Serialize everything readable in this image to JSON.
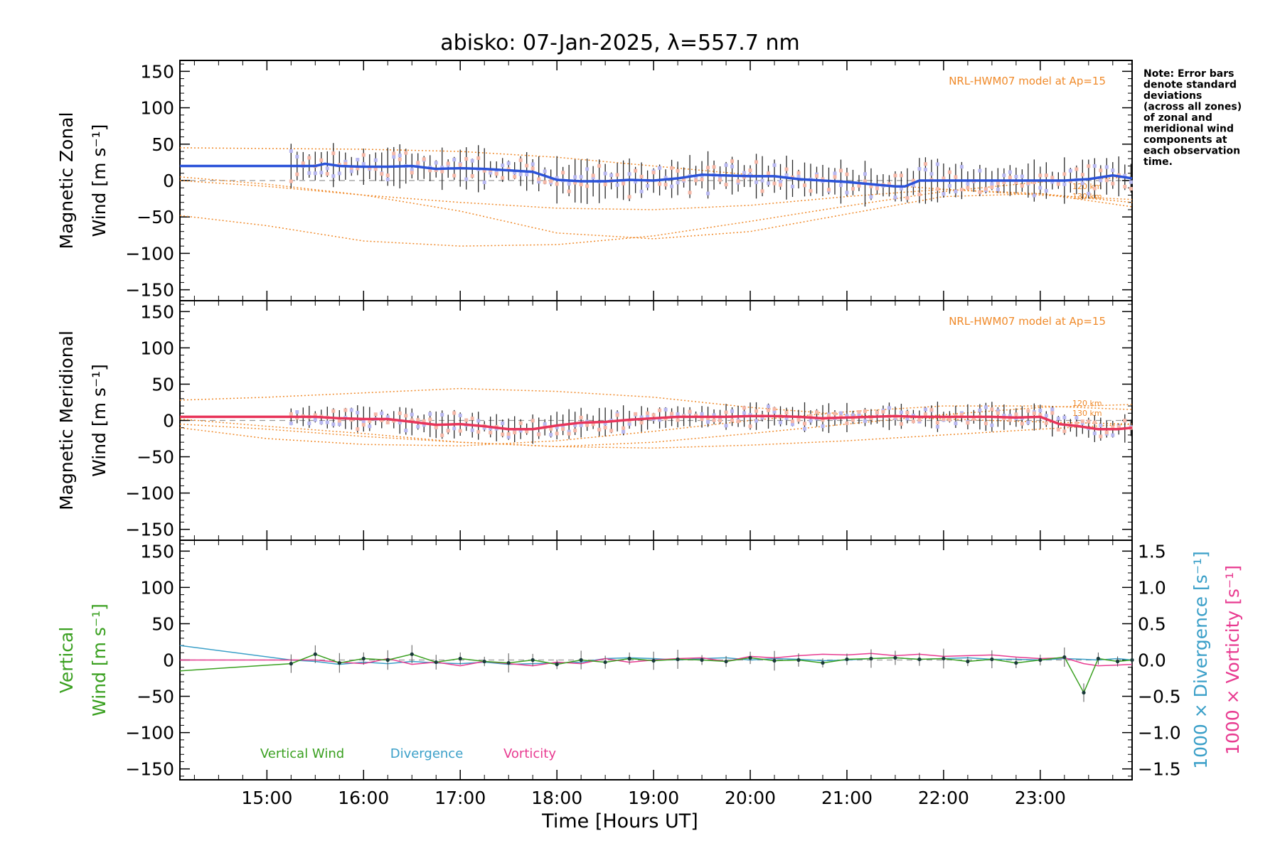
{
  "title": "abisko: 07-Jan-2025, λ=557.7 nm",
  "xlabel": "Time [Hours UT]",
  "note_lines": [
    "Note: Error bars",
    "denote standard",
    "deviations",
    "(across all zones)",
    "of zonal and",
    "meridional wind",
    "components at",
    "each observation",
    "time."
  ],
  "colors": {
    "zonal": "#2a52d9",
    "zonal_light": "#3a9fe0",
    "meridional": "#e8345a",
    "meridional_light": "#f06080",
    "model": "#f08a2a",
    "vertical": "#3aa020",
    "divergence": "#3a9fc8",
    "vorticity": "#e83a90",
    "zero_line": "#999999"
  },
  "chart_data": [
    {
      "type": "line",
      "panel": "zonal",
      "ylabel_lines": [
        "Magnetic Zonal",
        "Wind [m s⁻¹]"
      ],
      "ylim": [
        -165,
        165
      ],
      "yticks": [
        150,
        100,
        50,
        0,
        -50,
        -100,
        -150
      ],
      "model_label": "NRL-HWM07 model at Ap=15",
      "model_altitudes": [
        "120 km",
        "130 km"
      ],
      "x": [
        14.1,
        15.25,
        15.5,
        15.6,
        15.75,
        16.0,
        16.25,
        16.5,
        16.75,
        17.0,
        17.25,
        17.5,
        17.75,
        18.0,
        18.25,
        18.5,
        18.75,
        19.0,
        19.25,
        19.5,
        19.75,
        20.0,
        20.25,
        20.5,
        20.75,
        21.0,
        21.25,
        21.5,
        21.6,
        21.75,
        22.0,
        22.25,
        22.5,
        22.75,
        23.0,
        23.25,
        23.5,
        23.75,
        23.95
      ],
      "series": [
        {
          "values": [
            20,
            20,
            20,
            23,
            20,
            19,
            19,
            20,
            16,
            17,
            16,
            14,
            12,
            1,
            -1,
            -1,
            1,
            0,
            3,
            8,
            7,
            6,
            6,
            2,
            0,
            -2,
            -5,
            -8,
            -8,
            0,
            0,
            0,
            0,
            0,
            0,
            0,
            2,
            7,
            3
          ]
        }
      ],
      "model_curves": [
        {
          "x": [
            14.1,
            15.0,
            16.0,
            17.0,
            18.0,
            19.0,
            20.0,
            21.0,
            22.0,
            23.0,
            23.95
          ],
          "values": [
            45,
            44,
            43,
            40,
            32,
            20,
            8,
            -2,
            -12,
            -20,
            -26
          ]
        },
        {
          "x": [
            14.1,
            15.0,
            16.0,
            17.0,
            18.0,
            19.0,
            20.0,
            21.0,
            22.0,
            23.0,
            23.95
          ],
          "values": [
            -48,
            -62,
            -83,
            -90,
            -88,
            -76,
            -56,
            -35,
            -15,
            -2,
            5
          ]
        },
        {
          "x": [
            14.1,
            15.0,
            16.0,
            17.0,
            18.0,
            19.0,
            20.0,
            21.0,
            22.0,
            23.0,
            23.95
          ],
          "values": [
            5,
            -5,
            -20,
            -42,
            -72,
            -80,
            -70,
            -46,
            -22,
            -18,
            -30
          ]
        },
        {
          "x": [
            14.1,
            15.0,
            16.0,
            17.0,
            18.0,
            19.0,
            20.0,
            21.0,
            22.0,
            23.0,
            23.95
          ],
          "values": [
            0,
            -8,
            -20,
            -30,
            -38,
            -40,
            -34,
            -22,
            -12,
            -18,
            -36
          ]
        }
      ]
    },
    {
      "type": "line",
      "panel": "meridional",
      "ylabel_lines": [
        "Magnetic Meridional",
        "Wind [m s⁻¹]"
      ],
      "ylim": [
        -165,
        165
      ],
      "yticks": [
        150,
        100,
        50,
        0,
        -50,
        -100,
        -150
      ],
      "model_label": "NRL-HWM07 model at Ap=15",
      "model_altitudes": [
        "120 km",
        "130 km"
      ],
      "x": [
        14.1,
        15.25,
        15.5,
        15.75,
        16.0,
        16.25,
        16.5,
        16.75,
        17.0,
        17.25,
        17.5,
        17.75,
        18.0,
        18.25,
        18.5,
        18.75,
        19.0,
        19.25,
        19.5,
        19.75,
        20.0,
        20.25,
        20.5,
        20.75,
        21.0,
        21.25,
        21.5,
        21.75,
        22.0,
        22.25,
        22.5,
        22.75,
        23.0,
        23.2,
        23.4,
        23.6,
        23.8,
        23.95
      ],
      "series": [
        {
          "values": [
            5,
            5,
            5,
            3,
            2,
            2,
            -2,
            -6,
            -5,
            -8,
            -12,
            -12,
            -7,
            -3,
            -2,
            1,
            3,
            5,
            5,
            5,
            6,
            6,
            5,
            3,
            4,
            5,
            6,
            5,
            5,
            5,
            5,
            4,
            5,
            -5,
            -8,
            -12,
            -12,
            -10
          ]
        }
      ],
      "model_curves": [
        {
          "x": [
            14.1,
            15.0,
            16.0,
            17.0,
            18.0,
            19.0,
            20.0,
            21.0,
            22.0,
            23.0,
            23.95
          ],
          "values": [
            28,
            32,
            38,
            44,
            40,
            32,
            18,
            8,
            2,
            -2,
            -5
          ]
        },
        {
          "x": [
            14.1,
            15.0,
            16.0,
            17.0,
            18.0,
            19.0,
            20.0,
            21.0,
            22.0,
            23.0,
            23.95
          ],
          "values": [
            -5,
            -12,
            -22,
            -30,
            -36,
            -30,
            -18,
            -5,
            8,
            18,
            22
          ]
        },
        {
          "x": [
            14.1,
            15.0,
            16.0,
            17.0,
            18.0,
            19.0,
            20.0,
            21.0,
            22.0,
            23.0,
            23.95
          ],
          "values": [
            -10,
            -25,
            -33,
            -35,
            -28,
            -15,
            0,
            12,
            20,
            20,
            15
          ]
        },
        {
          "x": [
            14.1,
            15.0,
            16.0,
            17.0,
            18.0,
            19.0,
            20.0,
            21.0,
            22.0,
            23.0,
            23.95
          ],
          "values": [
            2,
            -8,
            -18,
            -30,
            -36,
            -38,
            -34,
            -28,
            -20,
            -12,
            -5
          ]
        }
      ]
    },
    {
      "type": "line",
      "panel": "vertical",
      "ylabel_lines": [
        "Vertical",
        "Wind [m s⁻¹]"
      ],
      "ylim": [
        -165,
        165
      ],
      "yticks": [
        150,
        100,
        50,
        0,
        -50,
        -100,
        -150
      ],
      "y2label_divergence": "1000 × Divergence [s⁻¹]",
      "y2label_vorticity": "1000 × Vorticity [s⁻¹]",
      "y2lim": [
        -1.65,
        1.65
      ],
      "y2ticks": [
        "1.5",
        "1.0",
        "0.5",
        "0.0",
        "−0.5",
        "−1.0",
        "−1.5"
      ],
      "legend": [
        "Vertical Wind",
        "Divergence",
        "Vorticity"
      ],
      "x": [
        14.1,
        15.25,
        15.5,
        15.75,
        16.0,
        16.25,
        16.5,
        16.75,
        17.0,
        17.25,
        17.5,
        17.75,
        18.0,
        18.25,
        18.5,
        18.75,
        19.0,
        19.25,
        19.5,
        19.75,
        20.0,
        20.25,
        20.5,
        20.75,
        21.0,
        21.25,
        21.5,
        21.75,
        22.0,
        22.25,
        22.5,
        22.75,
        23.0,
        23.25,
        23.45,
        23.6,
        23.8,
        23.95
      ],
      "series": [
        {
          "name": "Vertical Wind",
          "values": [
            -15,
            -5,
            8,
            -4,
            2,
            0,
            8,
            -3,
            2,
            -2,
            -4,
            0,
            -6,
            0,
            -3,
            2,
            -1,
            1,
            0,
            -2,
            3,
            -1,
            0,
            -4,
            1,
            2,
            3,
            1,
            2,
            -2,
            1,
            -4,
            0,
            4,
            -45,
            2,
            -2,
            0
          ]
        },
        {
          "name": "Divergence",
          "values": [
            0.2,
            0.0,
            -0.02,
            -0.06,
            -0.03,
            -0.05,
            -0.02,
            -0.04,
            -0.05,
            -0.03,
            -0.06,
            -0.05,
            -0.04,
            -0.03,
            0.02,
            0.03,
            0.02,
            0.0,
            0.02,
            0.03,
            0.0,
            0.02,
            0.01,
            -0.01,
            0.0,
            0.02,
            0.03,
            0.01,
            0.02,
            0.03,
            0.01,
            0.01,
            0.0,
            0.02,
            0.01,
            0.0,
            0.02,
            0.0
          ]
        },
        {
          "name": "Vorticity",
          "values": [
            0.0,
            0.0,
            0.0,
            -0.03,
            -0.05,
            0.02,
            -0.06,
            -0.03,
            -0.08,
            -0.02,
            -0.05,
            -0.08,
            -0.03,
            -0.05,
            0.02,
            -0.03,
            0.0,
            0.02,
            0.03,
            -0.02,
            0.05,
            0.03,
            0.06,
            0.08,
            0.07,
            0.09,
            0.06,
            0.08,
            0.05,
            0.06,
            0.07,
            0.04,
            0.02,
            0.03,
            -0.05,
            -0.08,
            -0.07,
            -0.06
          ]
        }
      ]
    }
  ],
  "x_axis": {
    "xlim": [
      14.1,
      23.95
    ],
    "ticks": [
      15,
      16,
      17,
      18,
      19,
      20,
      21,
      22,
      23
    ],
    "tick_labels": [
      "15:00",
      "16:00",
      "17:00",
      "18:00",
      "19:00",
      "20:00",
      "21:00",
      "22:00",
      "23:00"
    ]
  }
}
